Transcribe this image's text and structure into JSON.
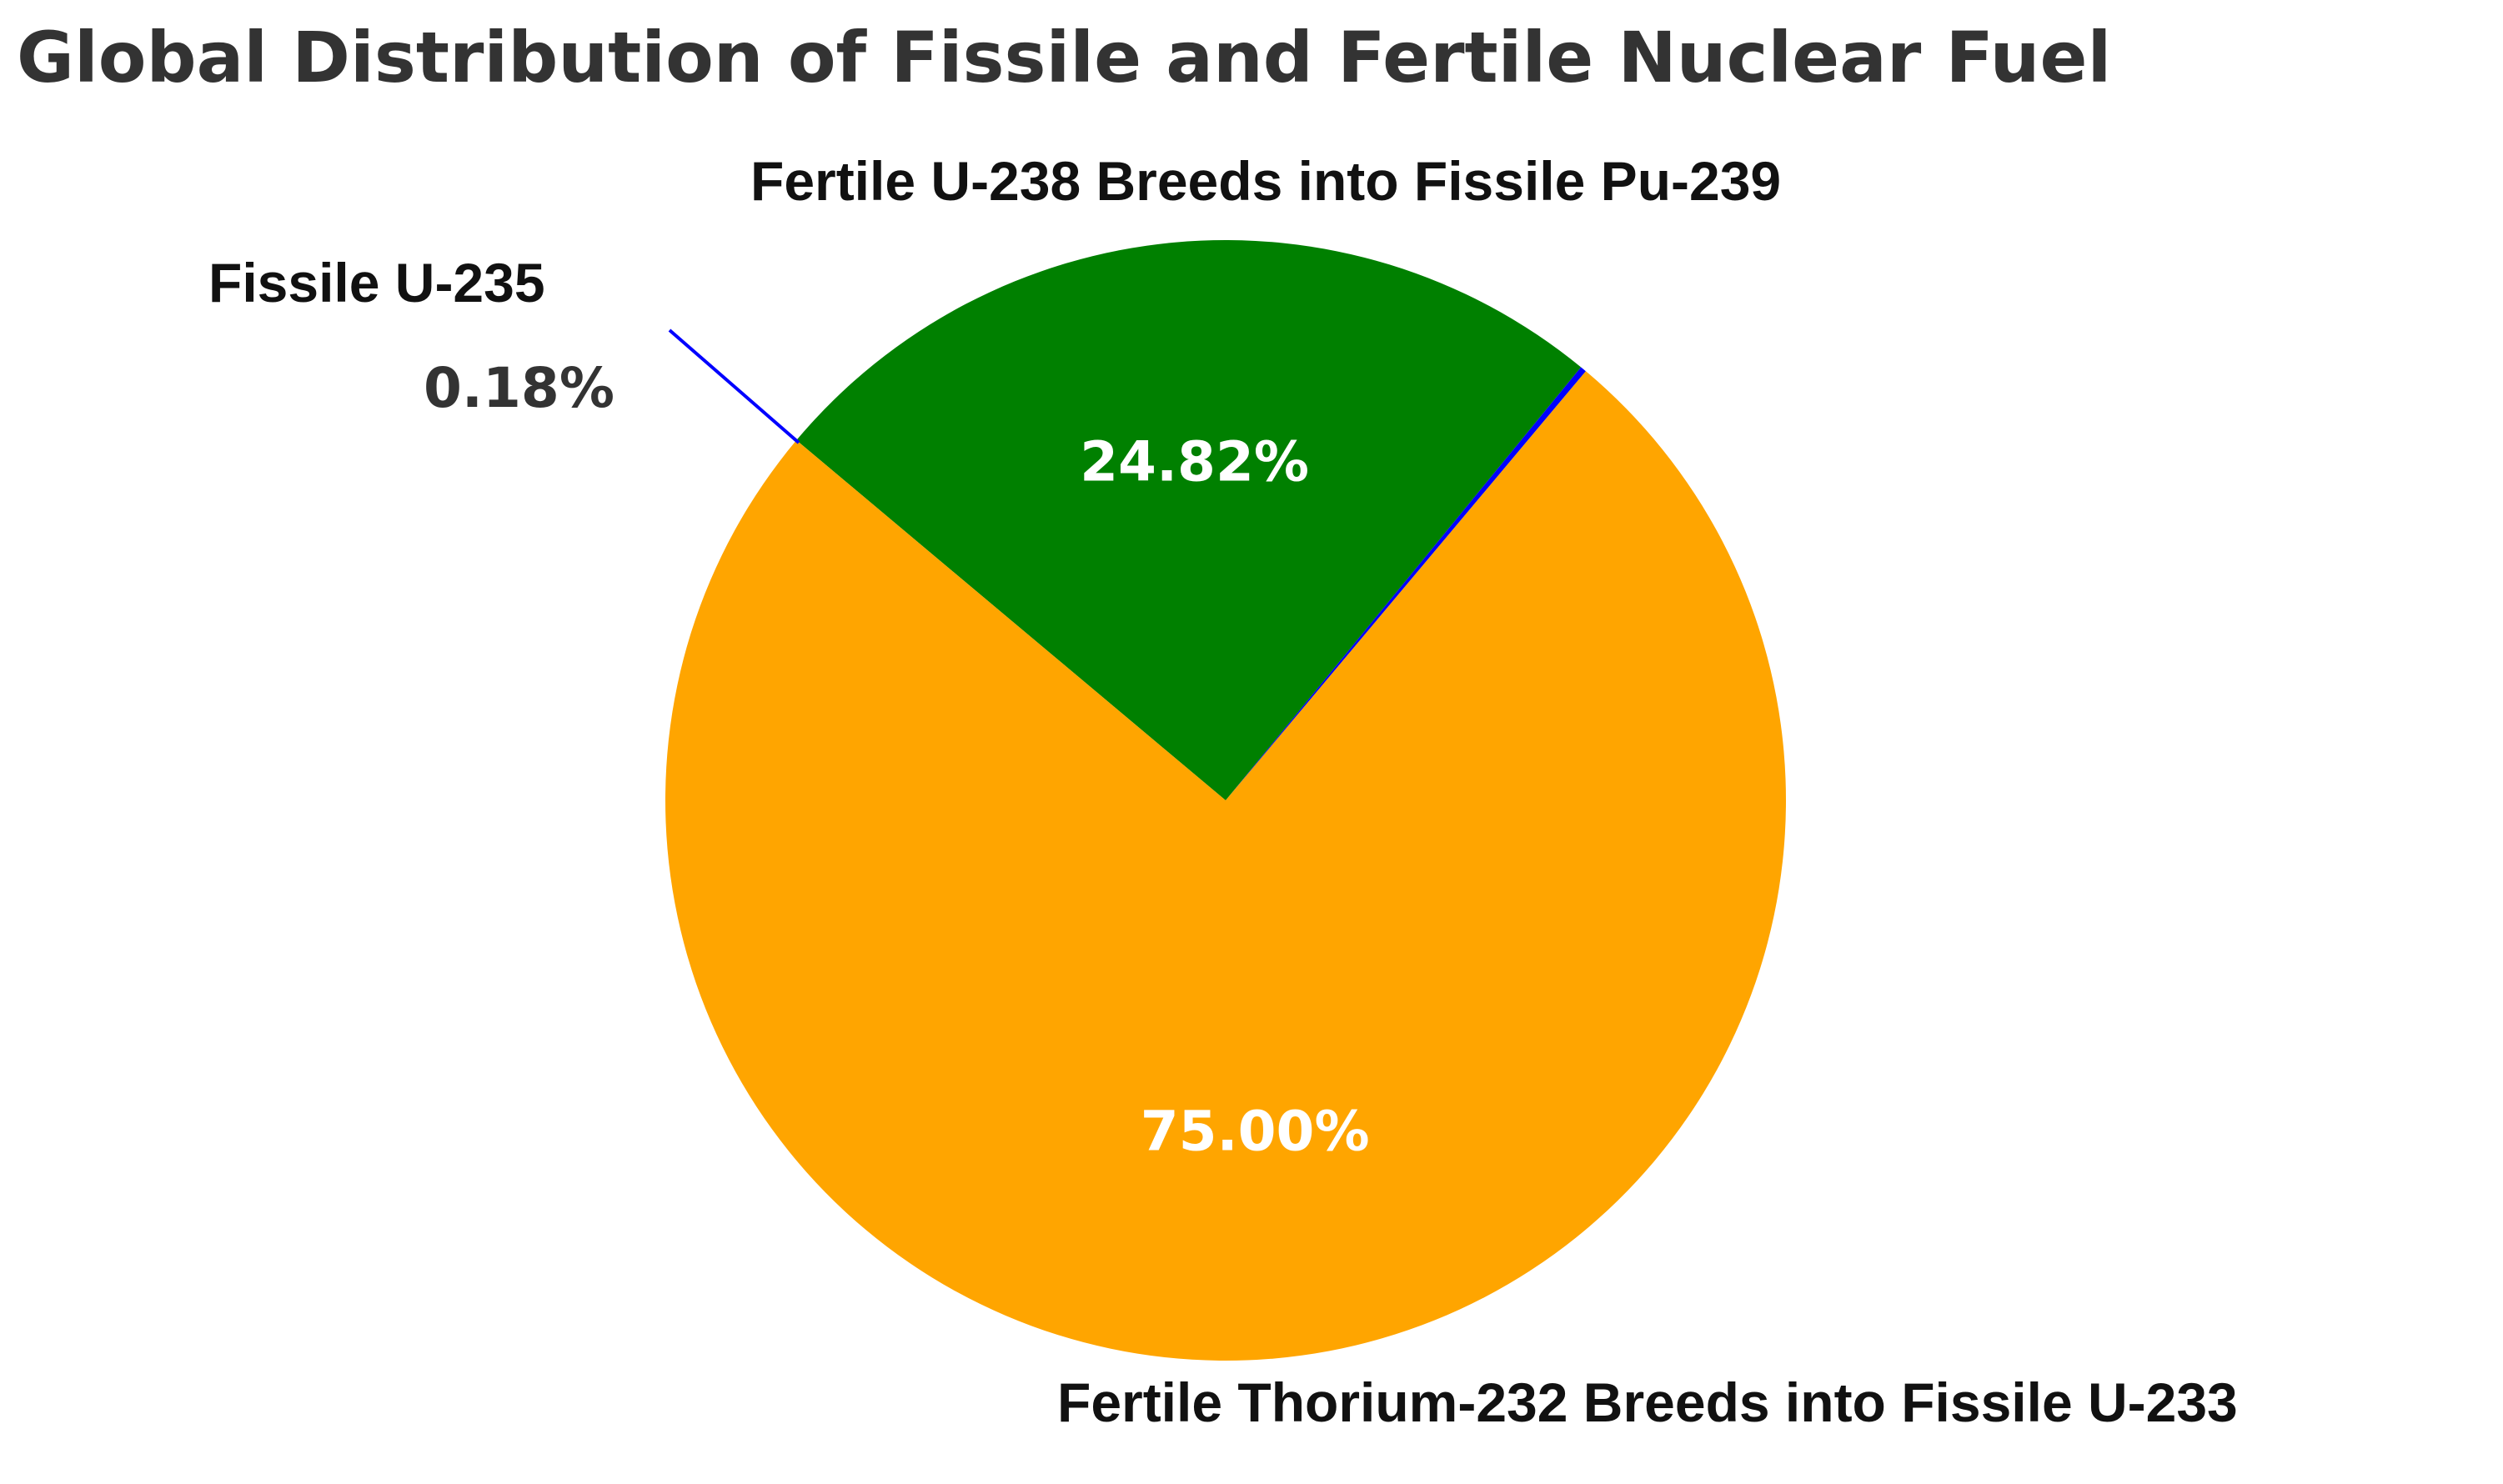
{
  "chart_data": {
    "type": "pie",
    "title": "Global Distribution of Fissile and Fertile Nuclear Fuel",
    "slices": [
      {
        "label": "Fissile U-235",
        "value": 0.18,
        "value_label": "0.18%",
        "color": "#0000ff",
        "label_color": "#333333"
      },
      {
        "label": "Fertile  U-238 Breeds into Fissile Pu-239",
        "value": 24.82,
        "value_label": "24.82%",
        "color": "#008000",
        "label_color": "#ffffff"
      },
      {
        "label": "Fertile  Thorium-232 Breeds into Fissile U-233",
        "value": 75.0,
        "value_label": "75.00%",
        "color": "#ffa500",
        "label_color": "#ffffff"
      }
    ]
  }
}
